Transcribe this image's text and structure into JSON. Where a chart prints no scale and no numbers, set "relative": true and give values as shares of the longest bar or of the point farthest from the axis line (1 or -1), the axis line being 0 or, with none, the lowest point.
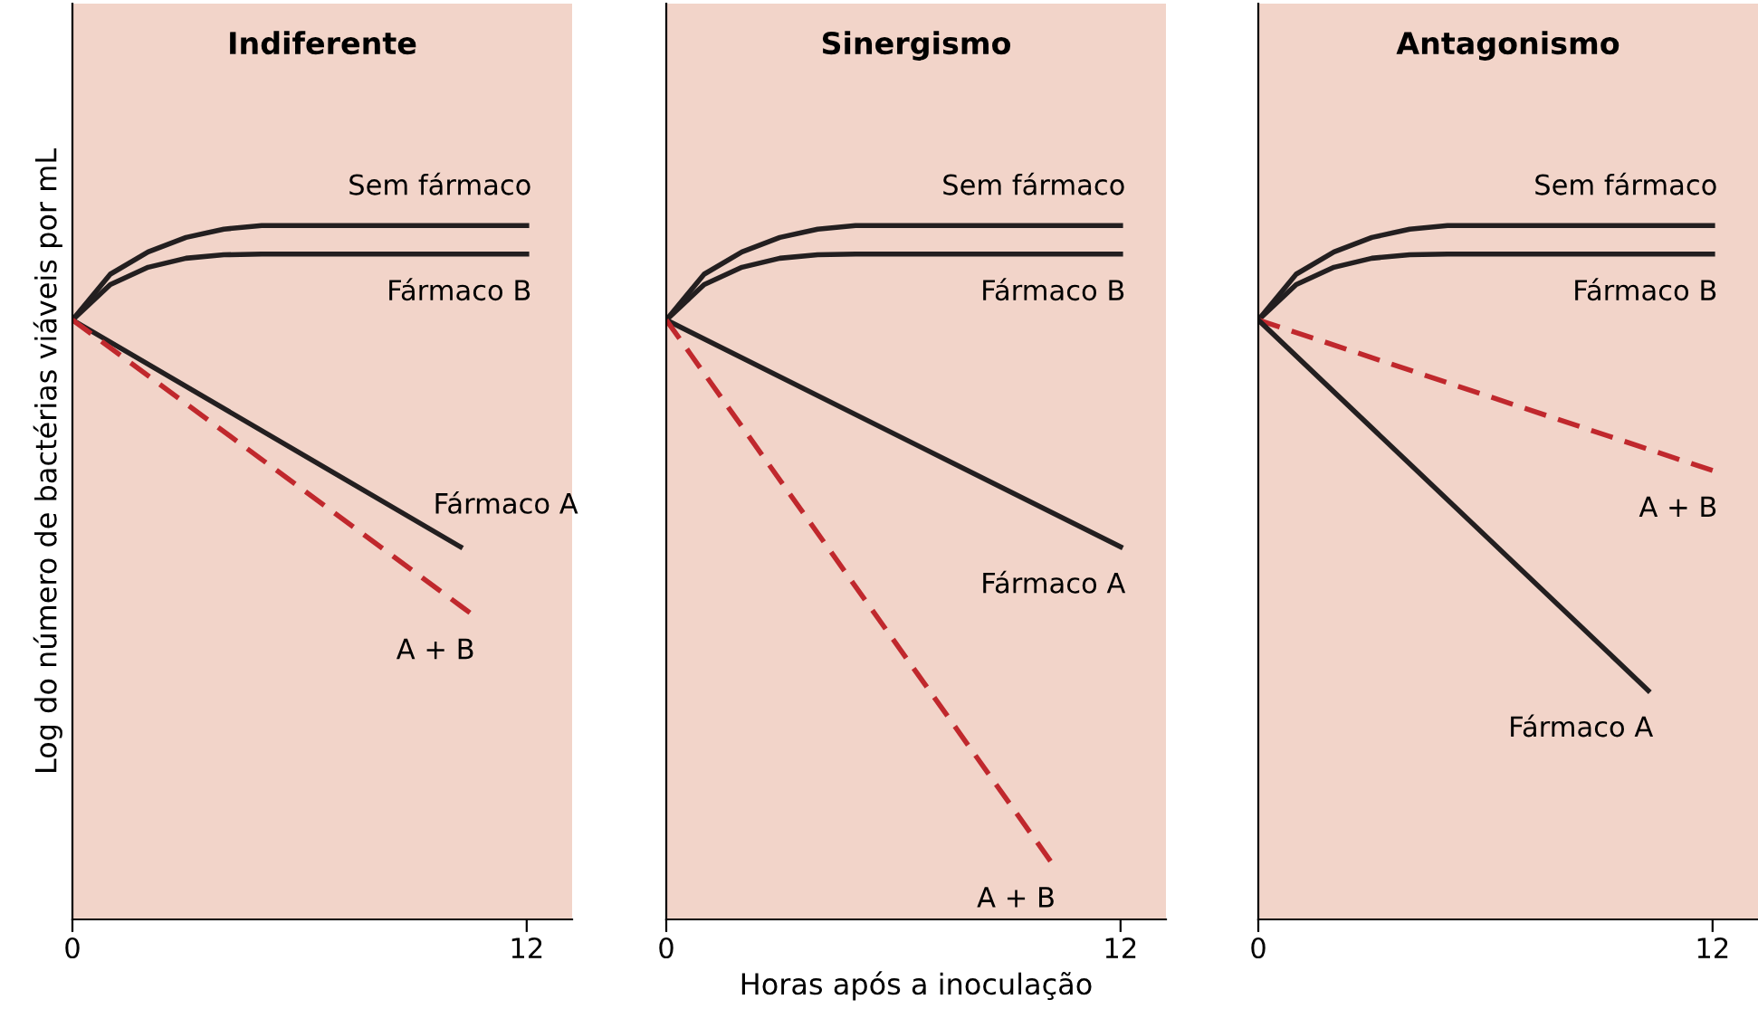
{
  "chart_data": [
    {
      "type": "line",
      "title": "Indiferente",
      "ylabel": "Log do número de bactérias viáveis por mL",
      "relative": true,
      "xlim": [
        0,
        13.2
      ],
      "xticks": [
        0,
        12
      ],
      "tick_labels": "x",
      "grid": false,
      "legend": false,
      "series": [
        {
          "name": "Sem fármaco",
          "color": "#231f20",
          "x": [
            0,
            1,
            2,
            3,
            4,
            5,
            6,
            12
          ],
          "values": [
            0.864,
            0.93,
            0.962,
            0.983,
            0.995,
            1.0,
            1.0,
            1.0
          ]
        },
        {
          "name": "Fármaco B",
          "color": "#231f20",
          "x": [
            0,
            1,
            2,
            3,
            4,
            5,
            12
          ],
          "values": [
            0.864,
            0.915,
            0.94,
            0.953,
            0.958,
            0.959,
            0.959
          ]
        },
        {
          "name": "Fármaco A",
          "color": "#231f20",
          "x": [
            0,
            10.25
          ],
          "values": [
            0.864,
            0.537
          ]
        },
        {
          "name": "A + B",
          "color": "#c0282d",
          "line_style": "dashed",
          "x": [
            0,
            10.5
          ],
          "values": [
            0.864,
            0.442
          ]
        }
      ]
    },
    {
      "type": "line",
      "title": "Sinergismo",
      "xlabel": "Horas após a inoculação",
      "relative": true,
      "xlim": [
        0,
        13.2
      ],
      "xticks": [
        0,
        12
      ],
      "tick_labels": "x",
      "grid": false,
      "legend": false,
      "series": [
        {
          "name": "Sem fármaco",
          "color": "#231f20",
          "x": [
            0,
            1,
            2,
            3,
            4,
            5,
            6,
            12
          ],
          "values": [
            0.864,
            0.93,
            0.962,
            0.983,
            0.995,
            1.0,
            1.0,
            1.0
          ]
        },
        {
          "name": "Fármaco B",
          "color": "#231f20",
          "x": [
            0,
            1,
            2,
            3,
            4,
            5,
            12
          ],
          "values": [
            0.864,
            0.915,
            0.94,
            0.953,
            0.958,
            0.959,
            0.959
          ]
        },
        {
          "name": "Fármaco A",
          "color": "#231f20",
          "x": [
            0,
            12
          ],
          "values": [
            0.864,
            0.537
          ]
        },
        {
          "name": "A + B",
          "color": "#c0282d",
          "line_style": "dashed",
          "x": [
            0,
            10.15
          ],
          "values": [
            0.864,
            0.084
          ]
        }
      ]
    },
    {
      "type": "line",
      "title": "Antagonismo",
      "relative": true,
      "xlim": [
        0,
        13.2
      ],
      "xticks": [
        0,
        12
      ],
      "tick_labels": "x",
      "grid": false,
      "legend": false,
      "series": [
        {
          "name": "Sem fármaco",
          "color": "#231f20",
          "x": [
            0,
            1,
            2,
            3,
            4,
            5,
            6,
            12
          ],
          "values": [
            0.864,
            0.93,
            0.962,
            0.983,
            0.995,
            1.0,
            1.0,
            1.0
          ]
        },
        {
          "name": "Fármaco B",
          "color": "#231f20",
          "x": [
            0,
            1,
            2,
            3,
            4,
            5,
            12
          ],
          "values": [
            0.864,
            0.915,
            0.94,
            0.953,
            0.958,
            0.959,
            0.959
          ]
        },
        {
          "name": "A + B",
          "color": "#c0282d",
          "line_style": "dashed",
          "x": [
            0,
            12
          ],
          "values": [
            0.864,
            0.647
          ]
        },
        {
          "name": "Fármaco A",
          "color": "#231f20",
          "x": [
            0,
            10.3
          ],
          "values": [
            0.864,
            0.33
          ]
        }
      ]
    }
  ]
}
